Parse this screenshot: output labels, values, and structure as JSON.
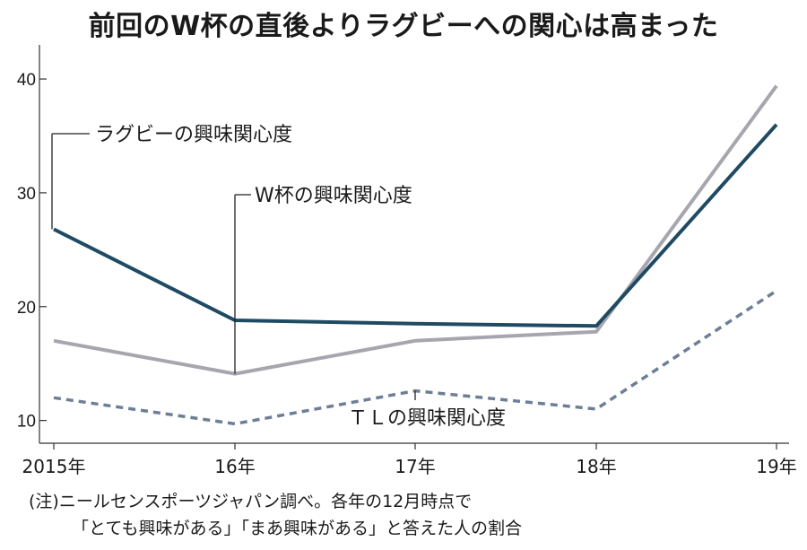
{
  "chart_data": {
    "type": "line",
    "title": "前回のW杯の直後よりラグビーへの関心は高まった",
    "categories": [
      "2015年",
      "16年",
      "17年",
      "18年",
      "19年"
    ],
    "ylim": [
      8,
      43
    ],
    "yticks": [
      10,
      20,
      30,
      40
    ],
    "ytick_labels": [
      "10",
      "20",
      "30",
      "40"
    ],
    "grid": false,
    "series": [
      {
        "name": "ラグビーの興味関心度",
        "values": [
          26.8,
          18.8,
          18.5,
          18.3,
          36.0
        ],
        "color": "#1f4a63",
        "style": "solid",
        "label_anchor_index": 0
      },
      {
        "name": "W杯の興味関心度",
        "values": [
          17.0,
          14.1,
          17.0,
          17.8,
          39.4
        ],
        "color": "#a7a6ae",
        "style": "solid",
        "label_anchor_index": 1
      },
      {
        "name": "ＴＬの興味関心度",
        "values": [
          12.0,
          9.7,
          12.6,
          11.0,
          21.4
        ],
        "color": "#6d7f96",
        "style": "dashed",
        "label_anchor_index": 2
      }
    ]
  },
  "notes": {
    "line1": "(注)ニールセンスポーツジャパン調べ。各年の12月時点で",
    "line2": "「とても興味がある」「まあ興味がある」と答えた人の割合"
  }
}
